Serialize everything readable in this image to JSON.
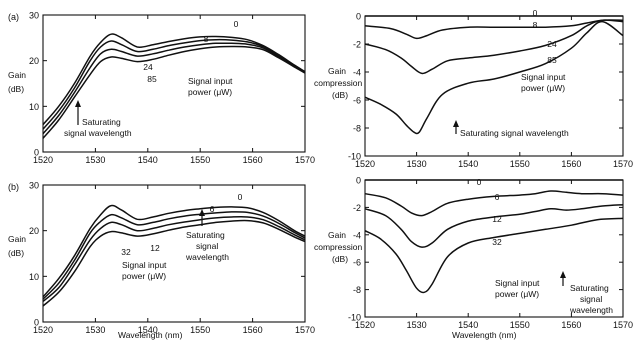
{
  "figure": {
    "panel_labels": [
      "(a)",
      "(b)"
    ]
  },
  "chart_data": [
    {
      "id": "a_gain",
      "type": "line",
      "panel": "(a)",
      "xlabel": "",
      "ylabel": [
        "Gain",
        "(dB)"
      ],
      "xlim": [
        1520,
        1570
      ],
      "ylim": [
        0,
        30
      ],
      "xticks": [
        1520,
        1530,
        1540,
        1550,
        1560,
        1570
      ],
      "yticks": [
        0,
        10,
        20,
        30
      ],
      "curve_labels": [
        "0",
        "8",
        "24",
        "85"
      ],
      "series": [
        {
          "name": "0",
          "x": [
            1520,
            1523,
            1526,
            1529,
            1531,
            1533,
            1535,
            1538,
            1541,
            1544,
            1547,
            1550,
            1553,
            1556,
            1559,
            1562,
            1565,
            1568,
            1570
          ],
          "y": [
            6,
            10,
            15,
            21,
            24,
            25.8,
            25,
            23,
            23.5,
            24.2,
            24.8,
            25.2,
            25.3,
            25.1,
            24.6,
            23.3,
            21.3,
            19,
            17.6
          ]
        },
        {
          "name": "8",
          "x": [
            1520,
            1523,
            1526,
            1529,
            1531,
            1533,
            1535,
            1538,
            1541,
            1544,
            1547,
            1550,
            1553,
            1556,
            1559,
            1562,
            1565,
            1568,
            1570
          ],
          "y": [
            5,
            9,
            14,
            20,
            23,
            24.3,
            23.5,
            22,
            22.5,
            23.3,
            23.9,
            24.4,
            24.6,
            24.5,
            24.1,
            23.1,
            21,
            19,
            17.5
          ]
        },
        {
          "name": "24",
          "x": [
            1520,
            1523,
            1526,
            1529,
            1531,
            1533,
            1535,
            1538,
            1541,
            1544,
            1547,
            1550,
            1553,
            1556,
            1559,
            1562,
            1565,
            1568,
            1570
          ],
          "y": [
            4,
            8,
            13,
            18.5,
            21.5,
            22.5,
            22,
            21,
            21.5,
            22.3,
            23,
            23.5,
            23.8,
            23.8,
            23.6,
            22.8,
            20.8,
            18.8,
            17.4
          ]
        },
        {
          "name": "85",
          "x": [
            1520,
            1523,
            1526,
            1529,
            1531,
            1533,
            1535,
            1538,
            1541,
            1544,
            1547,
            1550,
            1553,
            1556,
            1559,
            1562,
            1565,
            1568,
            1570
          ],
          "y": [
            3,
            7,
            12,
            17,
            19.8,
            20.8,
            20.5,
            19.8,
            20.3,
            21.2,
            22,
            22.6,
            23,
            23.1,
            23,
            22.4,
            20.6,
            18.6,
            17.3
          ]
        }
      ],
      "annotations": [
        {
          "text": "Saturating",
          "x": 1530
        },
        {
          "text": "signal wavelength",
          "x": 1530
        },
        {
          "text": "Signal input",
          "x": 1556
        },
        {
          "text": "power (μW)",
          "x": 1556
        }
      ]
    },
    {
      "id": "a_comp",
      "type": "line",
      "panel": "(a)",
      "xlabel": "",
      "ylabel": [
        "Gain",
        "compression",
        "(dB)"
      ],
      "xlim": [
        1520,
        1570
      ],
      "ylim": [
        -10,
        0
      ],
      "xticks": [
        1520,
        1530,
        1540,
        1550,
        1560,
        1570
      ],
      "yticks": [
        0,
        -2,
        -4,
        -6,
        -8,
        -10
      ],
      "curve_labels": [
        "0",
        "8",
        "24",
        "85"
      ],
      "series": [
        {
          "name": "0",
          "x": [
            1520,
            1530,
            1540,
            1550,
            1560,
            1570
          ],
          "y": [
            0,
            0,
            0,
            0,
            0,
            0
          ]
        },
        {
          "name": "8",
          "x": [
            1520,
            1525,
            1528,
            1530,
            1532,
            1535,
            1540,
            1545,
            1550,
            1555,
            1560,
            1563,
            1566,
            1570
          ],
          "y": [
            -0.7,
            -0.9,
            -1.3,
            -1.6,
            -1.4,
            -1.0,
            -0.8,
            -0.8,
            -0.8,
            -0.8,
            -0.7,
            -0.5,
            -0.3,
            -0.3
          ]
        },
        {
          "name": "24",
          "x": [
            1520,
            1524,
            1527,
            1529,
            1531,
            1533,
            1536,
            1540,
            1545,
            1550,
            1555,
            1560,
            1563,
            1566,
            1570
          ],
          "y": [
            -2.0,
            -2.4,
            -3.0,
            -3.6,
            -4.1,
            -3.8,
            -3.2,
            -3.0,
            -2.8,
            -2.5,
            -2.1,
            -1.4,
            -0.7,
            -0.3,
            -0.4
          ]
        },
        {
          "name": "85",
          "x": [
            1520,
            1523,
            1526,
            1528,
            1529.5,
            1530.5,
            1532,
            1535,
            1540,
            1545,
            1550,
            1555,
            1560,
            1563,
            1566,
            1570
          ],
          "y": [
            -5.8,
            -6.3,
            -7.0,
            -7.8,
            -8.3,
            -8.3,
            -7.3,
            -5.6,
            -4.8,
            -4.5,
            -4.0,
            -3.4,
            -2.3,
            -1.2,
            -0.4,
            -1.4
          ]
        }
      ],
      "annotations": [
        {
          "text": "Saturating signal wavelength",
          "x": 1530
        },
        {
          "text": "Signal input",
          "x": 1555
        },
        {
          "text": "power (μW)",
          "x": 1555
        }
      ]
    },
    {
      "id": "b_gain",
      "type": "line",
      "panel": "(b)",
      "xlabel": "Wavelength  (nm)",
      "ylabel": [
        "Gain",
        "(dB)"
      ],
      "xlim": [
        1520,
        1570
      ],
      "ylim": [
        0,
        30
      ],
      "xticks": [
        1520,
        1530,
        1540,
        1550,
        1560,
        1570
      ],
      "yticks": [
        0,
        10,
        20,
        30
      ],
      "curve_labels": [
        "0",
        "6",
        "12",
        "32"
      ],
      "series": [
        {
          "name": "0",
          "x": [
            1520,
            1523,
            1526,
            1529,
            1531,
            1533,
            1535,
            1538,
            1541,
            1544,
            1547,
            1550,
            1553,
            1556,
            1559,
            1562,
            1565,
            1568,
            1570
          ],
          "y": [
            5.5,
            9.5,
            14.5,
            20.5,
            23.5,
            25.5,
            24.5,
            22.5,
            23,
            23.8,
            24.4,
            24.8,
            25.1,
            25.2,
            25,
            24,
            22.2,
            20,
            18.8
          ]
        },
        {
          "name": "6",
          "x": [
            1520,
            1523,
            1526,
            1529,
            1531,
            1533,
            1535,
            1538,
            1541,
            1544,
            1547,
            1550,
            1553,
            1556,
            1559,
            1562,
            1565,
            1568,
            1570
          ],
          "y": [
            5,
            8.5,
            13.5,
            19.5,
            22,
            23.5,
            22.8,
            21.3,
            21.8,
            22.6,
            23.2,
            23.6,
            23.9,
            24.1,
            24,
            23.2,
            21.6,
            19.6,
            18.4
          ]
        },
        {
          "name": "12",
          "x": [
            1520,
            1523,
            1526,
            1529,
            1531,
            1533,
            1535,
            1538,
            1541,
            1544,
            1547,
            1550,
            1553,
            1556,
            1559,
            1562,
            1565,
            1568,
            1570
          ],
          "y": [
            4.5,
            7.5,
            12.5,
            18,
            20.5,
            21.8,
            21.3,
            20,
            20.5,
            21.3,
            21.9,
            22.4,
            22.8,
            23,
            23,
            22.4,
            20.9,
            19.1,
            18
          ]
        },
        {
          "name": "32",
          "x": [
            1520,
            1523,
            1526,
            1529,
            1531,
            1533,
            1535,
            1538,
            1541,
            1544,
            1547,
            1550,
            1553,
            1556,
            1559,
            1562,
            1565,
            1568,
            1570
          ],
          "y": [
            3.5,
            6.5,
            11,
            16.5,
            18.8,
            19.8,
            19.5,
            18.8,
            19.3,
            20.1,
            20.8,
            21.3,
            21.8,
            22.1,
            22.2,
            21.7,
            20.3,
            18.6,
            17.6
          ]
        }
      ],
      "annotations": [
        {
          "text": "Signal input",
          "x": 1537
        },
        {
          "text": "power (μW)",
          "x": 1537
        },
        {
          "text": "Saturating",
          "x": 1556
        },
        {
          "text": "signal",
          "x": 1556
        },
        {
          "text": "wavelength",
          "x": 1556
        }
      ]
    },
    {
      "id": "b_comp",
      "type": "line",
      "panel": "(b)",
      "xlabel": "Wavelength  (nm)",
      "ylabel": [
        "Gain",
        "compression",
        "(dB)"
      ],
      "xlim": [
        1520,
        1570
      ],
      "ylim": [
        -10,
        0
      ],
      "xticks": [
        1520,
        1530,
        1540,
        1550,
        1560,
        1570
      ],
      "yticks": [
        0,
        -2,
        -4,
        -6,
        -8,
        -10
      ],
      "curve_labels": [
        "0",
        "6",
        "12",
        "32"
      ],
      "series": [
        {
          "name": "0",
          "x": [
            1520,
            1530,
            1540,
            1550,
            1560,
            1570
          ],
          "y": [
            0,
            0,
            0,
            0,
            0,
            0
          ]
        },
        {
          "name": "6",
          "x": [
            1520,
            1524,
            1527,
            1529,
            1531,
            1533,
            1536,
            1540,
            1545,
            1550,
            1553,
            1556,
            1559,
            1562,
            1566,
            1570
          ],
          "y": [
            -1.0,
            -1.3,
            -1.9,
            -2.4,
            -2.6,
            -2.3,
            -1.7,
            -1.4,
            -1.2,
            -1.1,
            -1.0,
            -0.8,
            -0.9,
            -1.0,
            -1.0,
            -1.1
          ]
        },
        {
          "name": "12",
          "x": [
            1520,
            1524,
            1527,
            1529,
            1531,
            1533,
            1536,
            1540,
            1545,
            1550,
            1553,
            1556,
            1559,
            1562,
            1566,
            1570
          ],
          "y": [
            -2.1,
            -2.6,
            -3.6,
            -4.5,
            -4.9,
            -4.6,
            -3.6,
            -3.0,
            -2.7,
            -2.5,
            -2.3,
            -2.1,
            -2.2,
            -2.1,
            -1.9,
            -1.8
          ]
        },
        {
          "name": "32",
          "x": [
            1520,
            1523,
            1526,
            1528,
            1530,
            1531.5,
            1533,
            1536,
            1540,
            1545,
            1550,
            1555,
            1560,
            1565,
            1570
          ],
          "y": [
            -3.7,
            -4.3,
            -5.4,
            -6.6,
            -7.9,
            -8.2,
            -7.6,
            -5.6,
            -4.6,
            -4.2,
            -3.9,
            -3.6,
            -3.3,
            -2.9,
            -2.8
          ]
        }
      ],
      "annotations": [
        {
          "text": "Signal input",
          "x": 1545
        },
        {
          "text": "power (μW)",
          "x": 1545
        },
        {
          "text": "Saturating",
          "x": 1560
        },
        {
          "text": "signal",
          "x": 1560
        },
        {
          "text": "wavelength",
          "x": 1560
        }
      ]
    }
  ]
}
